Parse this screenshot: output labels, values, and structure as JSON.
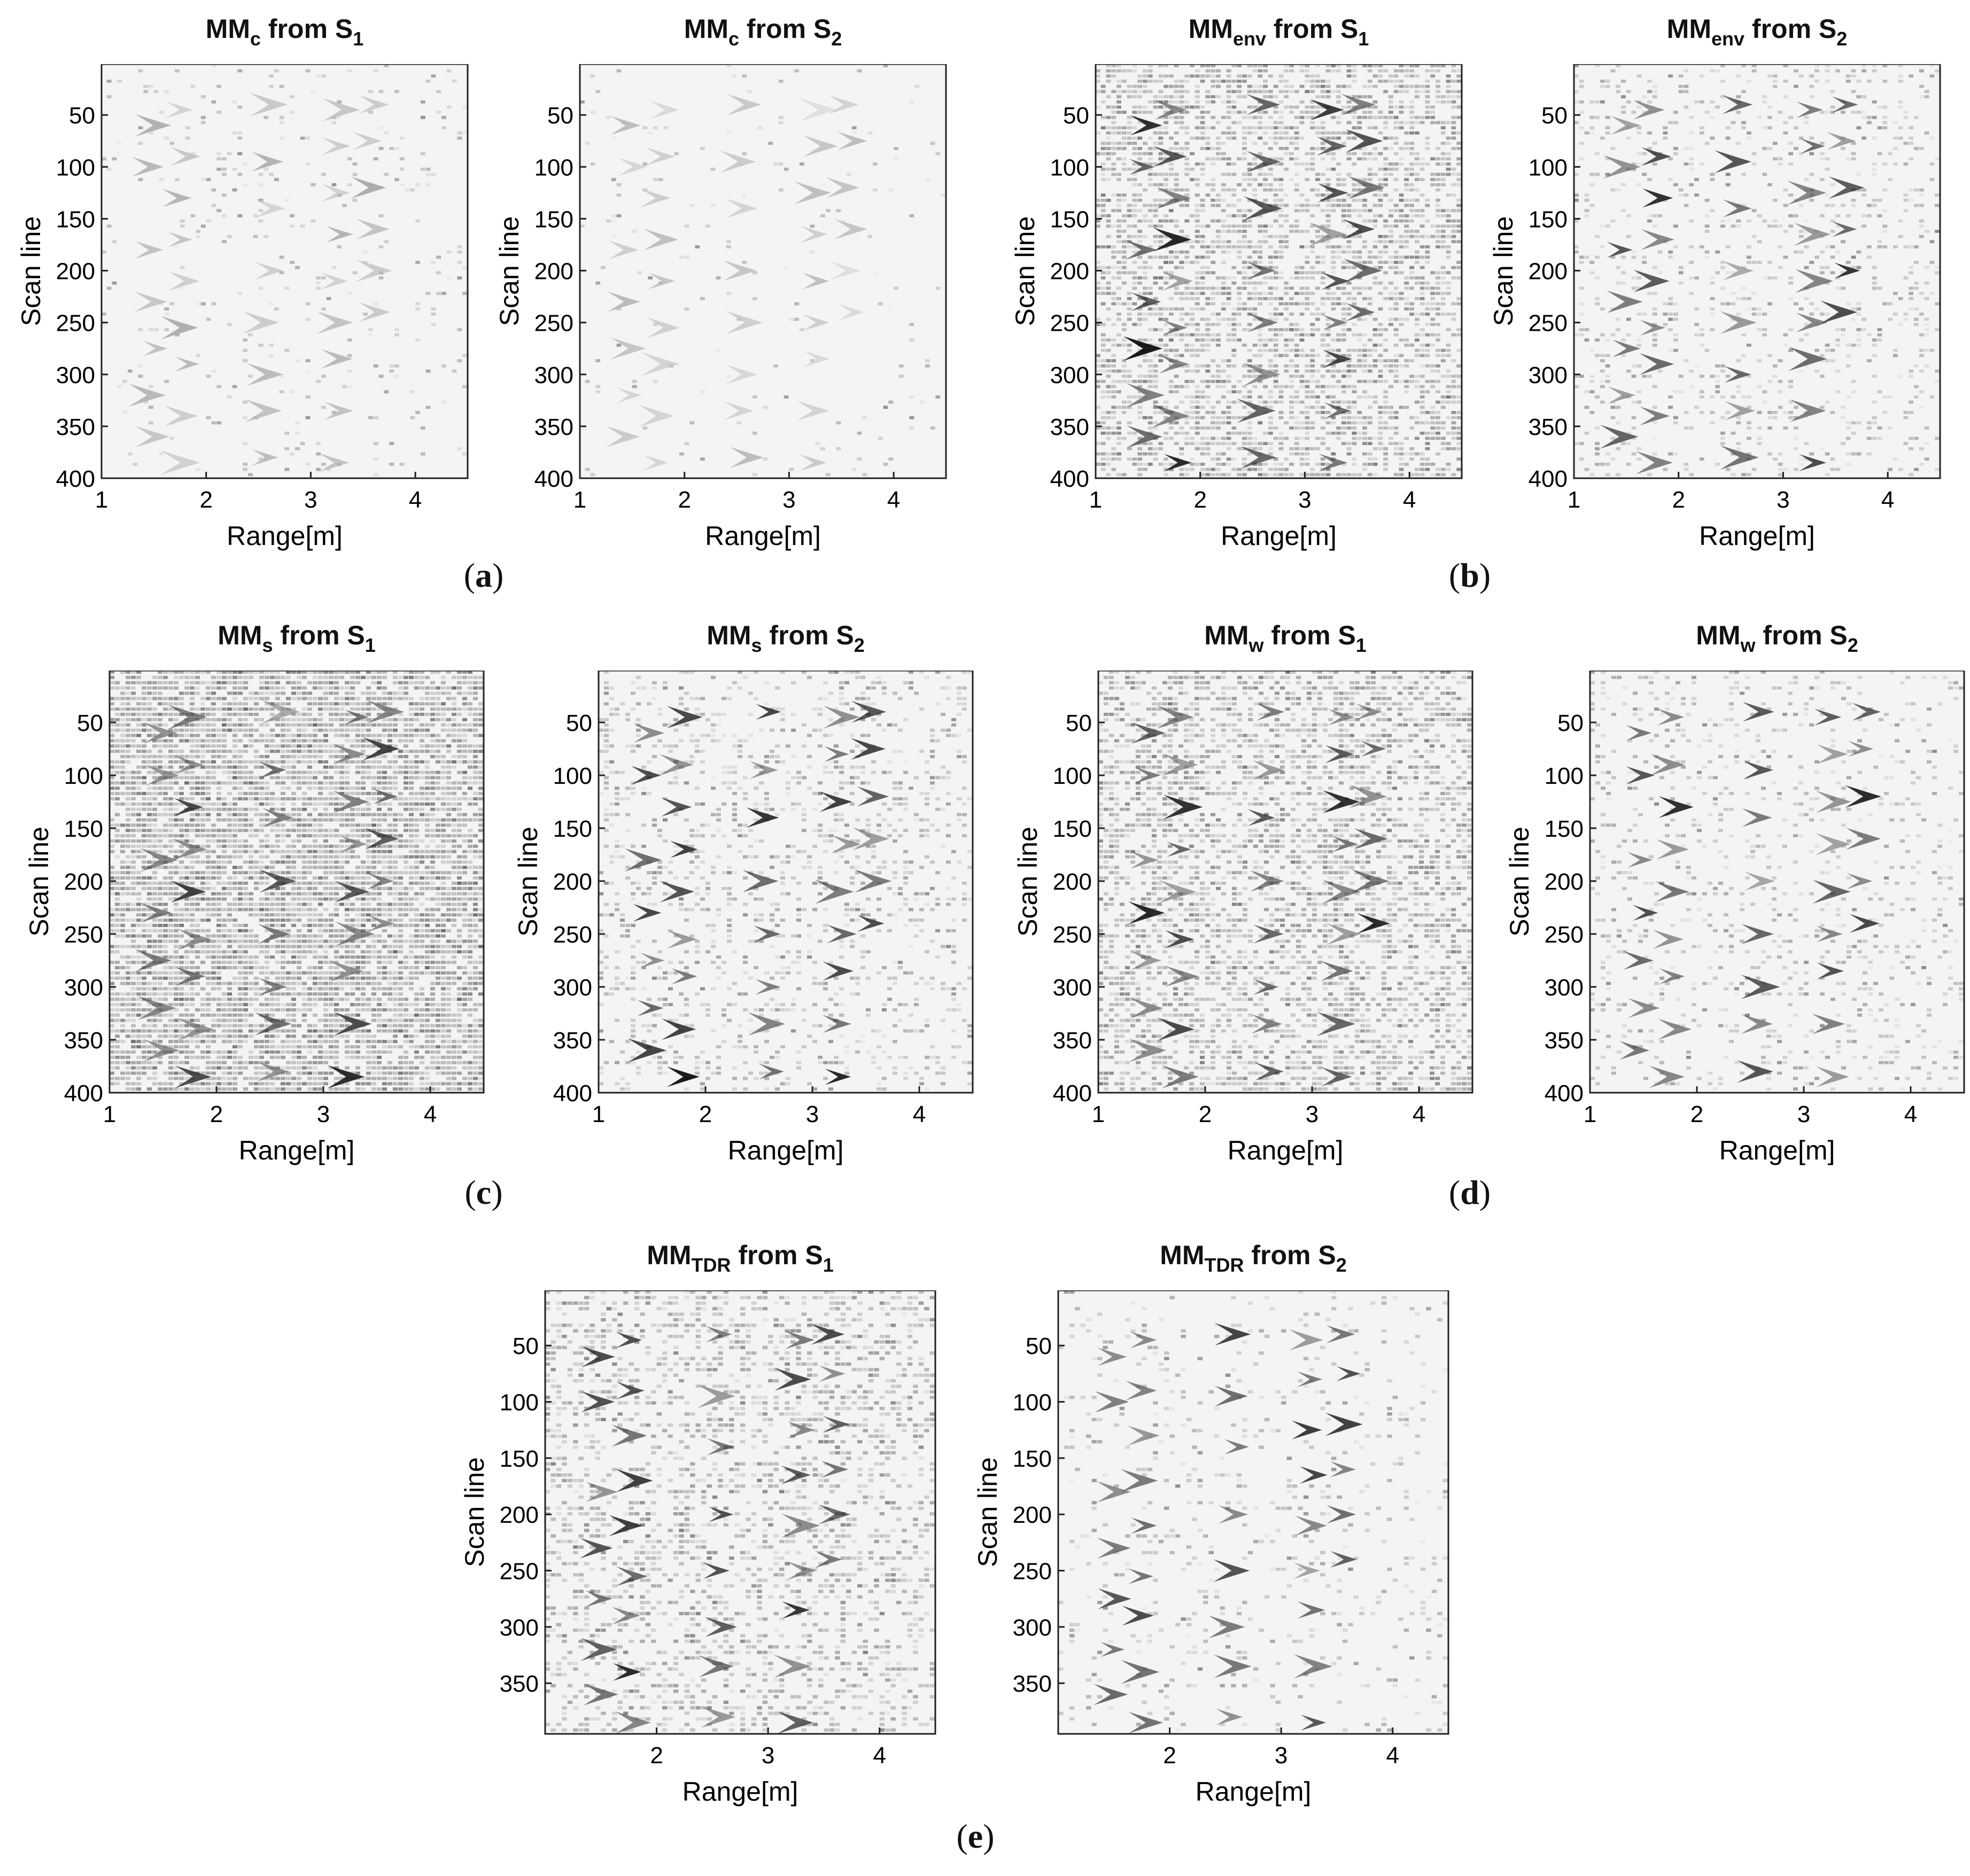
{
  "charts": [
    {
      "id": "a1",
      "title_main": "MM",
      "title_sub": "c",
      "title_rest": " from S",
      "title_sub2": "1",
      "noise": 0.06,
      "intensity": 0.35,
      "xlabel": "Range[m]",
      "ylabel": "Scan line",
      "xticks": [
        "1",
        "2",
        "3",
        "4"
      ],
      "yticks": [
        "50",
        "100",
        "150",
        "200",
        "250",
        "300",
        "350",
        "400"
      ]
    },
    {
      "id": "a2",
      "title_main": "MM",
      "title_sub": "c",
      "title_rest": " from S",
      "title_sub2": "2",
      "noise": 0.03,
      "intensity": 0.3,
      "xlabel": "Range[m]",
      "ylabel": "Scan line",
      "xticks": [
        "1",
        "2",
        "3",
        "4"
      ],
      "yticks": [
        "50",
        "100",
        "150",
        "200",
        "250",
        "300",
        "350",
        "400"
      ]
    },
    {
      "id": "b1",
      "title_main": "MM",
      "title_sub": "env",
      "title_rest": " from S",
      "title_sub2": "1",
      "noise": 0.55,
      "intensity": 0.95,
      "xlabel": "Range[m]",
      "ylabel": "Scan line",
      "xticks": [
        "1",
        "2",
        "3",
        "4"
      ],
      "yticks": [
        "50",
        "100",
        "150",
        "200",
        "250",
        "300",
        "350",
        "400"
      ]
    },
    {
      "id": "b2",
      "title_main": "MM",
      "title_sub": "env",
      "title_rest": " from S",
      "title_sub2": "2",
      "noise": 0.18,
      "intensity": 0.9,
      "xlabel": "Range[m]",
      "ylabel": "Scan line",
      "xticks": [
        "1",
        "2",
        "3",
        "4"
      ],
      "yticks": [
        "50",
        "100",
        "150",
        "200",
        "250",
        "300",
        "350",
        "400"
      ]
    },
    {
      "id": "c1",
      "title_main": "MM",
      "title_sub": "s",
      "title_rest": " from S",
      "title_sub2": "1",
      "noise": 0.8,
      "intensity": 0.9,
      "xlabel": "Range[m]",
      "ylabel": "Scan line",
      "xticks": [
        "1",
        "2",
        "3",
        "4"
      ],
      "yticks": [
        "50",
        "100",
        "150",
        "200",
        "250",
        "300",
        "350",
        "400"
      ]
    },
    {
      "id": "c2",
      "title_main": "MM",
      "title_sub": "s",
      "title_rest": "  from S",
      "title_sub2": "2",
      "noise": 0.22,
      "intensity": 0.95,
      "xlabel": "Range[m]",
      "ylabel": "Scan line",
      "xticks": [
        "1",
        "2",
        "3",
        "4"
      ],
      "yticks": [
        "50",
        "100",
        "150",
        "200",
        "250",
        "300",
        "350",
        "400"
      ]
    },
    {
      "id": "d1",
      "title_main": "MM",
      "title_sub": "w",
      "title_rest": " from S",
      "title_sub2": "1",
      "noise": 0.5,
      "intensity": 0.95,
      "xlabel": "Range[m]",
      "ylabel": "Scan line",
      "xticks": [
        "1",
        "2",
        "3",
        "4"
      ],
      "yticks": [
        "50",
        "100",
        "150",
        "200",
        "250",
        "300",
        "350",
        "400"
      ]
    },
    {
      "id": "d2",
      "title_main": "MM",
      "title_sub": "w",
      "title_rest": " from S",
      "title_sub2": "2",
      "noise": 0.16,
      "intensity": 0.9,
      "xlabel": "Range[m]",
      "ylabel": "Scan line",
      "xticks": [
        "1",
        "2",
        "3",
        "4"
      ],
      "yticks": [
        "50",
        "100",
        "150",
        "200",
        "250",
        "300",
        "350",
        "400"
      ]
    },
    {
      "id": "e1",
      "title_main": "MM",
      "title_sub": "TDR",
      "title_rest": " from S",
      "title_sub2": "1",
      "noise": 0.35,
      "intensity": 0.95,
      "xlabel": "Range[m]",
      "ylabel": "Scan line",
      "xticks": [
        "2",
        "3",
        "4"
      ],
      "yticks": [
        "50",
        "100",
        "150",
        "200",
        "250",
        "300",
        "350"
      ]
    },
    {
      "id": "e2",
      "title_main": "MM",
      "title_sub": "TDR",
      "title_rest": " from S",
      "title_sub2": "2",
      "noise": 0.1,
      "intensity": 0.9,
      "xlabel": "Range[m]",
      "ylabel": "Scan line",
      "xticks": [
        "2",
        "3",
        "4"
      ],
      "yticks": [
        "50",
        "100",
        "150",
        "200",
        "250",
        "300",
        "350"
      ]
    }
  ],
  "labels": {
    "a": "a",
    "b": "b",
    "c": "c",
    "d": "d",
    "e": "e"
  },
  "colors": {
    "background": "#ffffff",
    "axis": "#222222",
    "ink": "#000000"
  },
  "chart_data": {
    "type": "heatmap",
    "colormap": "gray (dark = high)",
    "x_range": [
      1,
      4.5
    ],
    "y_range": [
      1,
      400
    ],
    "xlabel": "Range[m]",
    "ylabel": "Scan line"
  }
}
